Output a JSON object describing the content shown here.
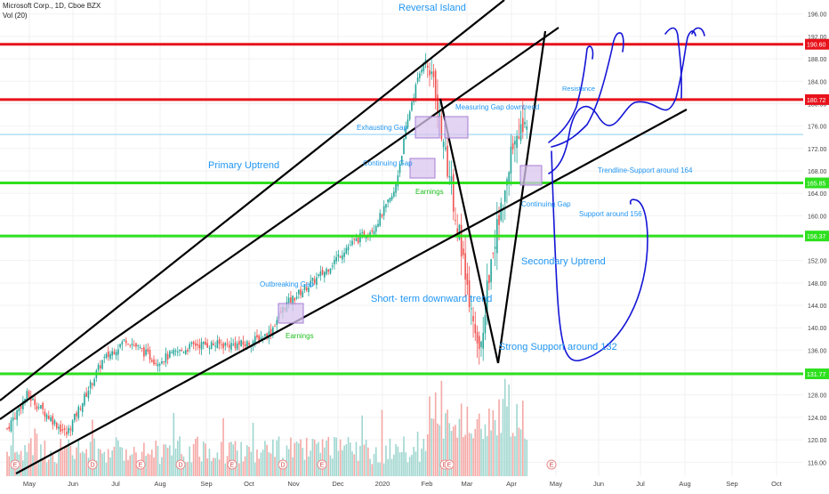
{
  "header": {
    "symbol_line": "Microsoft Corp., 1D, Cboe BZX",
    "volume_line": "Vol (20)"
  },
  "colors": {
    "up": "#26a69a",
    "down": "#ef5350",
    "resistance_line": "#e8121b",
    "support_line": "#2ee01e",
    "trend_line": "#000000",
    "annotation_text": "#2196f3",
    "earnings_text": "#1fbf1f",
    "gap_box": "#d8c6ee",
    "gap_box_border": "#a77ed4",
    "hand_drawn": "#1414d6",
    "last_price_line": "#7ec8f0"
  },
  "chart_data": {
    "type": "candlestick",
    "x_ticks": [
      "May",
      "Jun",
      "Jul",
      "Aug",
      "Sep",
      "Oct",
      "Nov",
      "Dec",
      "2020",
      "Feb",
      "Mar",
      "Apr",
      "May",
      "Jun",
      "Jul",
      "Aug",
      "Sep",
      "Oct"
    ],
    "y_ticks": [
      196.0,
      192.0,
      188.0,
      184.0,
      180.0,
      176.0,
      172.0,
      168.0,
      164.0,
      160.0,
      156.0,
      152.0,
      148.0,
      144.0,
      140.0,
      136.0,
      132.0,
      128.0,
      124.0,
      120.0,
      116.0
    ],
    "y_range": [
      113.5,
      198.5
    ],
    "price_labels": [
      {
        "value": "190.60",
        "price": 190.6,
        "kind": "resistance"
      },
      {
        "value": "180.72",
        "price": 180.72,
        "kind": "resistance"
      },
      {
        "value": "165.85",
        "price": 165.85,
        "kind": "support"
      },
      {
        "value": "156.37",
        "price": 156.37,
        "kind": "support"
      },
      {
        "value": "131.77",
        "price": 131.77,
        "kind": "support"
      }
    ],
    "ohlc_anchor_series": [
      {
        "date": "2019-04-22",
        "close": 122
      },
      {
        "date": "2019-05-06",
        "close": 128
      },
      {
        "date": "2019-06-03",
        "close": 121
      },
      {
        "date": "2019-06-28",
        "close": 134
      },
      {
        "date": "2019-07-15",
        "close": 138
      },
      {
        "date": "2019-08-05",
        "close": 134
      },
      {
        "date": "2019-09-02",
        "close": 137
      },
      {
        "date": "2019-10-07",
        "close": 137
      },
      {
        "date": "2019-10-24",
        "close": 139
      },
      {
        "date": "2019-11-04",
        "close": 144
      },
      {
        "date": "2019-12-02",
        "close": 150
      },
      {
        "date": "2019-12-16",
        "close": 154
      },
      {
        "date": "2020-01-06",
        "close": 158
      },
      {
        "date": "2020-01-20",
        "close": 164
      },
      {
        "date": "2020-02-01",
        "close": 180
      },
      {
        "date": "2020-02-10",
        "close": 188
      },
      {
        "date": "2020-02-17",
        "close": 185
      },
      {
        "date": "2020-02-25",
        "close": 171
      },
      {
        "date": "2020-03-05",
        "close": 158
      },
      {
        "date": "2020-03-12",
        "close": 145
      },
      {
        "date": "2020-03-20",
        "close": 134
      },
      {
        "date": "2020-03-27",
        "close": 150
      },
      {
        "date": "2020-04-07",
        "close": 164
      },
      {
        "date": "2020-04-15",
        "close": 176
      },
      {
        "date": "2020-04-24",
        "close": 174
      }
    ],
    "annotations": [
      {
        "key": "reversal",
        "text": "Reversal Island"
      },
      {
        "key": "primary",
        "text": "Primary Uptrend"
      },
      {
        "key": "resistance",
        "text": "Resistance"
      },
      {
        "key": "measuring",
        "text": "Measuring Gap downtrend"
      },
      {
        "key": "exhausting",
        "text": "Exhausting Gap"
      },
      {
        "key": "continuing1",
        "text": "Continuing Gap"
      },
      {
        "key": "earnings1",
        "text": "Earnings"
      },
      {
        "key": "trendline_support",
        "text": "Trendline-Support around 164"
      },
      {
        "key": "continuing2",
        "text": "Continuing Gap"
      },
      {
        "key": "support156",
        "text": "Support around 156"
      },
      {
        "key": "secondary",
        "text": "Secondary Uptrend"
      },
      {
        "key": "outbreaking",
        "text": "Outbreaking  Gap"
      },
      {
        "key": "shortterm",
        "text": "Short- term downward trend"
      },
      {
        "key": "earnings2",
        "text": "Earnings"
      },
      {
        "key": "strong",
        "text": "Strong Support around 132"
      }
    ],
    "event_markers": [
      "E",
      "D",
      "E",
      "D",
      "E",
      "D",
      "E",
      "D",
      "E"
    ]
  }
}
